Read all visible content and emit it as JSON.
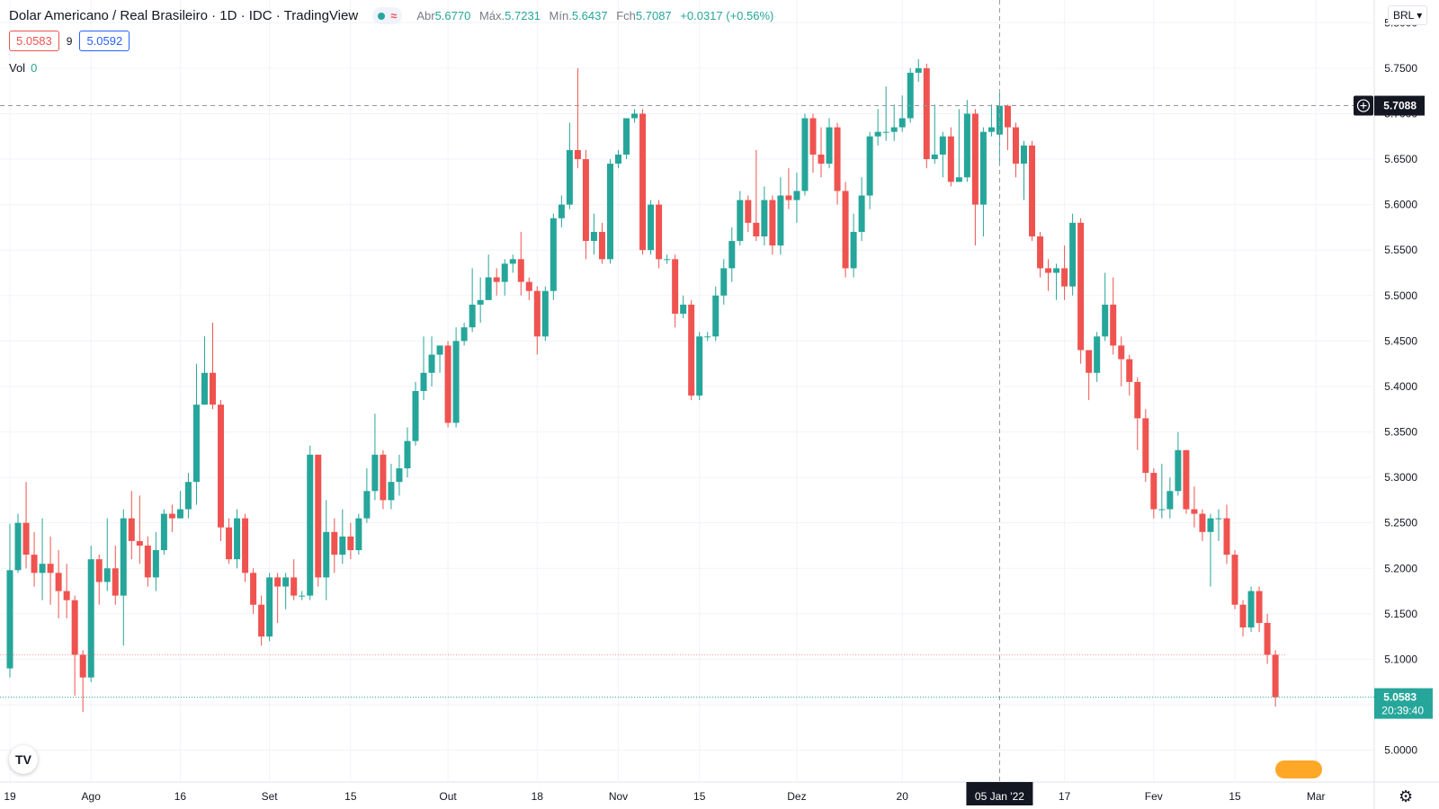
{
  "header": {
    "title": "Dolar Americano / Real Brasileiro · 1D · IDC · TradingView",
    "ohlc": [
      {
        "k": "Abr",
        "v": "5.6770"
      },
      {
        "k": "Máx.",
        "v": "5.7231"
      },
      {
        "k": "Mín.",
        "v": "5.6437"
      },
      {
        "k": "Fch",
        "v": "5.7087"
      }
    ],
    "change": "+0.0317 (+0.56%)",
    "bid": "5.0583",
    "spread": "9",
    "ask": "5.0592",
    "vol_label": "Vol",
    "vol_value": "0",
    "currency": "BRL"
  },
  "crosshair": {
    "price_label": "5.7088",
    "date_label": "05 Jan '22"
  },
  "last_price": {
    "value": "5.0583",
    "countdown": "20:39:40"
  },
  "colors": {
    "up": "#26a69a",
    "down": "#ef5350",
    "background": "#ffffff",
    "grid": "#f0f3fa",
    "crosshair": "#9598a1"
  },
  "icons": {
    "logo": "tradingview-logo-icon",
    "settings": "gear-icon",
    "flags": "flags-icon"
  },
  "chart_data": {
    "type": "candlestick",
    "symbol": "USDBRL",
    "interval": "1D",
    "ylim": [
      4.965,
      5.825
    ],
    "y_ticks": [
      "5.8000",
      "5.7500",
      "5.7000",
      "5.6500",
      "5.6000",
      "5.5500",
      "5.5000",
      "5.4500",
      "5.4000",
      "5.3500",
      "5.3000",
      "5.2500",
      "5.2000",
      "5.1500",
      "5.1000",
      "5.0500",
      "5.0000"
    ],
    "x_ticks": [
      {
        "label": "19",
        "i": 0
      },
      {
        "label": "Ago",
        "i": 10
      },
      {
        "label": "16",
        "i": 21
      },
      {
        "label": "Set",
        "i": 32
      },
      {
        "label": "15",
        "i": 42
      },
      {
        "label": "Out",
        "i": 54
      },
      {
        "label": "18",
        "i": 65
      },
      {
        "label": "Nov",
        "i": 75
      },
      {
        "label": "15",
        "i": 85
      },
      {
        "label": "Dez",
        "i": 97
      },
      {
        "label": "20",
        "i": 110
      },
      {
        "label": "17",
        "i": 130
      },
      {
        "label": "Fev",
        "i": 141
      },
      {
        "label": "15",
        "i": 151
      },
      {
        "label": "Mar",
        "i": 161
      }
    ],
    "crosshair_index": 122,
    "candles": [
      [
        5.09,
        5.198,
        5.249,
        5.08
      ],
      [
        5.198,
        5.25,
        5.26,
        5.195
      ],
      [
        5.25,
        5.215,
        5.295,
        5.2
      ],
      [
        5.215,
        5.195,
        5.24,
        5.18
      ],
      [
        5.195,
        5.205,
        5.255,
        5.165
      ],
      [
        5.205,
        5.195,
        5.235,
        5.16
      ],
      [
        5.195,
        5.175,
        5.22,
        5.145
      ],
      [
        5.175,
        5.165,
        5.205,
        5.145
      ],
      [
        5.165,
        5.105,
        5.17,
        5.06
      ],
      [
        5.105,
        5.08,
        5.11,
        5.042
      ],
      [
        5.08,
        5.21,
        5.225,
        5.075
      ],
      [
        5.21,
        5.185,
        5.215,
        5.16
      ],
      [
        5.185,
        5.2,
        5.255,
        5.175
      ],
      [
        5.2,
        5.17,
        5.225,
        5.16
      ],
      [
        5.17,
        5.255,
        5.265,
        5.115
      ],
      [
        5.255,
        5.23,
        5.285,
        5.21
      ],
      [
        5.23,
        5.225,
        5.28,
        5.205
      ],
      [
        5.225,
        5.19,
        5.235,
        5.18
      ],
      [
        5.19,
        5.22,
        5.24,
        5.175
      ],
      [
        5.22,
        5.26,
        5.265,
        5.215
      ],
      [
        5.26,
        5.255,
        5.27,
        5.24
      ],
      [
        5.255,
        5.265,
        5.285,
        5.255
      ],
      [
        5.265,
        5.295,
        5.305,
        5.255
      ],
      [
        5.295,
        5.38,
        5.425,
        5.27
      ],
      [
        5.38,
        5.415,
        5.455,
        5.38
      ],
      [
        5.415,
        5.38,
        5.47,
        5.375
      ],
      [
        5.38,
        5.245,
        5.385,
        5.23
      ],
      [
        5.245,
        5.21,
        5.255,
        5.205
      ],
      [
        5.21,
        5.255,
        5.265,
        5.2
      ],
      [
        5.255,
        5.195,
        5.26,
        5.185
      ],
      [
        5.195,
        5.16,
        5.2,
        5.15
      ],
      [
        5.16,
        5.125,
        5.17,
        5.115
      ],
      [
        5.125,
        5.19,
        5.195,
        5.12
      ],
      [
        5.19,
        5.18,
        5.195,
        5.14
      ],
      [
        5.18,
        5.19,
        5.195,
        5.155
      ],
      [
        5.19,
        5.17,
        5.21,
        5.165
      ],
      [
        5.17,
        5.17,
        5.175,
        5.165
      ],
      [
        5.17,
        5.325,
        5.335,
        5.165
      ],
      [
        5.325,
        5.19,
        5.32,
        5.18
      ],
      [
        5.19,
        5.24,
        5.275,
        5.165
      ],
      [
        5.24,
        5.215,
        5.255,
        5.195
      ],
      [
        5.215,
        5.235,
        5.265,
        5.205
      ],
      [
        5.235,
        5.22,
        5.25,
        5.21
      ],
      [
        5.22,
        5.255,
        5.26,
        5.215
      ],
      [
        5.255,
        5.285,
        5.31,
        5.25
      ],
      [
        5.285,
        5.325,
        5.37,
        5.275
      ],
      [
        5.325,
        5.275,
        5.33,
        5.265
      ],
      [
        5.275,
        5.295,
        5.315,
        5.265
      ],
      [
        5.295,
        5.31,
        5.325,
        5.28
      ],
      [
        5.31,
        5.34,
        5.355,
        5.3
      ],
      [
        5.34,
        5.395,
        5.405,
        5.335
      ],
      [
        5.395,
        5.415,
        5.455,
        5.385
      ],
      [
        5.415,
        5.435,
        5.455,
        5.4
      ],
      [
        5.435,
        5.445,
        5.445,
        5.415
      ],
      [
        5.445,
        5.36,
        5.45,
        5.355
      ],
      [
        5.36,
        5.45,
        5.465,
        5.355
      ],
      [
        5.45,
        5.465,
        5.47,
        5.445
      ],
      [
        5.465,
        5.49,
        5.53,
        5.46
      ],
      [
        5.49,
        5.495,
        5.52,
        5.47
      ],
      [
        5.495,
        5.52,
        5.545,
        5.505
      ],
      [
        5.52,
        5.515,
        5.53,
        5.5
      ],
      [
        5.515,
        5.535,
        5.54,
        5.5
      ],
      [
        5.535,
        5.54,
        5.545,
        5.525
      ],
      [
        5.54,
        5.515,
        5.57,
        5.5
      ],
      [
        5.515,
        5.505,
        5.52,
        5.495
      ],
      [
        5.505,
        5.455,
        5.51,
        5.435
      ],
      [
        5.455,
        5.505,
        5.51,
        5.45
      ],
      [
        5.505,
        5.585,
        5.59,
        5.495
      ],
      [
        5.585,
        5.6,
        5.61,
        5.575
      ],
      [
        5.6,
        5.66,
        5.69,
        5.595
      ],
      [
        5.66,
        5.65,
        5.75,
        5.64
      ],
      [
        5.65,
        5.56,
        5.66,
        5.54
      ],
      [
        5.56,
        5.57,
        5.59,
        5.545
      ],
      [
        5.57,
        5.54,
        5.58,
        5.535
      ],
      [
        5.54,
        5.645,
        5.65,
        5.535
      ],
      [
        5.645,
        5.655,
        5.66,
        5.64
      ],
      [
        5.655,
        5.695,
        5.695,
        5.65
      ],
      [
        5.695,
        5.7,
        5.705,
        5.69
      ],
      [
        5.7,
        5.55,
        5.705,
        5.545
      ],
      [
        5.55,
        5.6,
        5.605,
        5.545
      ],
      [
        5.6,
        5.54,
        5.605,
        5.53
      ],
      [
        5.54,
        5.54,
        5.545,
        5.535
      ],
      [
        5.54,
        5.48,
        5.545,
        5.465
      ],
      [
        5.48,
        5.49,
        5.5,
        5.475
      ],
      [
        5.49,
        5.39,
        5.495,
        5.385
      ],
      [
        5.39,
        5.455,
        5.46,
        5.385
      ],
      [
        5.455,
        5.455,
        5.46,
        5.45
      ],
      [
        5.455,
        5.5,
        5.51,
        5.45
      ],
      [
        5.5,
        5.53,
        5.54,
        5.49
      ],
      [
        5.53,
        5.56,
        5.575,
        5.515
      ],
      [
        5.56,
        5.605,
        5.615,
        5.555
      ],
      [
        5.605,
        5.58,
        5.61,
        5.57
      ],
      [
        5.58,
        5.565,
        5.66,
        5.56
      ],
      [
        5.565,
        5.605,
        5.62,
        5.555
      ],
      [
        5.605,
        5.555,
        5.61,
        5.545
      ],
      [
        5.555,
        5.61,
        5.63,
        5.545
      ],
      [
        5.61,
        5.605,
        5.64,
        5.595
      ],
      [
        5.605,
        5.615,
        5.635,
        5.58
      ],
      [
        5.615,
        5.695,
        5.7,
        5.61
      ],
      [
        5.695,
        5.655,
        5.7,
        5.635
      ],
      [
        5.655,
        5.645,
        5.685,
        5.63
      ],
      [
        5.645,
        5.685,
        5.695,
        5.64
      ],
      [
        5.685,
        5.615,
        5.69,
        5.6
      ],
      [
        5.615,
        5.53,
        5.625,
        5.52
      ],
      [
        5.53,
        5.57,
        5.59,
        5.52
      ],
      [
        5.57,
        5.61,
        5.63,
        5.56
      ],
      [
        5.61,
        5.675,
        5.68,
        5.595
      ],
      [
        5.675,
        5.68,
        5.705,
        5.665
      ],
      [
        5.68,
        5.68,
        5.73,
        5.67
      ],
      [
        5.68,
        5.685,
        5.71,
        5.67
      ],
      [
        5.685,
        5.695,
        5.72,
        5.68
      ],
      [
        5.695,
        5.745,
        5.75,
        5.69
      ],
      [
        5.745,
        5.75,
        5.76,
        5.735
      ],
      [
        5.75,
        5.65,
        5.755,
        5.64
      ],
      [
        5.65,
        5.655,
        5.71,
        5.645
      ],
      [
        5.655,
        5.675,
        5.68,
        5.63
      ],
      [
        5.675,
        5.625,
        5.685,
        5.62
      ],
      [
        5.625,
        5.63,
        5.705,
        5.625
      ],
      [
        5.63,
        5.7,
        5.715,
        5.625
      ],
      [
        5.7,
        5.6,
        5.705,
        5.555
      ],
      [
        5.6,
        5.68,
        5.685,
        5.565
      ],
      [
        5.68,
        5.685,
        5.71,
        5.675
      ],
      [
        5.677,
        5.7087,
        5.7231,
        5.6437
      ],
      [
        5.7087,
        5.685,
        5.71,
        5.66
      ],
      [
        5.685,
        5.645,
        5.69,
        5.63
      ],
      [
        5.645,
        5.665,
        5.67,
        5.605
      ],
      [
        5.665,
        5.565,
        5.67,
        5.56
      ],
      [
        5.565,
        5.53,
        5.57,
        5.52
      ],
      [
        5.53,
        5.525,
        5.54,
        5.505
      ],
      [
        5.525,
        5.53,
        5.535,
        5.495
      ],
      [
        5.53,
        5.51,
        5.555,
        5.495
      ],
      [
        5.51,
        5.58,
        5.59,
        5.5
      ],
      [
        5.58,
        5.44,
        5.585,
        5.425
      ],
      [
        5.44,
        5.415,
        5.44,
        5.385
      ],
      [
        5.415,
        5.455,
        5.46,
        5.405
      ],
      [
        5.455,
        5.49,
        5.525,
        5.45
      ],
      [
        5.49,
        5.445,
        5.52,
        5.435
      ],
      [
        5.445,
        5.43,
        5.455,
        5.4
      ],
      [
        5.43,
        5.405,
        5.435,
        5.39
      ],
      [
        5.405,
        5.365,
        5.41,
        5.33
      ],
      [
        5.365,
        5.305,
        5.375,
        5.295
      ],
      [
        5.305,
        5.265,
        5.31,
        5.255
      ],
      [
        5.265,
        5.265,
        5.315,
        5.255
      ],
      [
        5.265,
        5.285,
        5.3,
        5.255
      ],
      [
        5.285,
        5.33,
        5.35,
        5.28
      ],
      [
        5.33,
        5.265,
        5.33,
        5.26
      ],
      [
        5.265,
        5.26,
        5.29,
        5.245
      ],
      [
        5.26,
        5.24,
        5.265,
        5.23
      ],
      [
        5.24,
        5.255,
        5.26,
        5.18
      ],
      [
        5.255,
        5.255,
        5.265,
        5.23
      ],
      [
        5.255,
        5.215,
        5.27,
        5.205
      ],
      [
        5.215,
        5.16,
        5.22,
        5.155
      ],
      [
        5.16,
        5.135,
        5.165,
        5.125
      ],
      [
        5.135,
        5.175,
        5.18,
        5.13
      ],
      [
        5.175,
        5.14,
        5.18,
        5.13
      ],
      [
        5.14,
        5.105,
        5.15,
        5.095
      ],
      [
        5.105,
        5.0583,
        5.11,
        5.048
      ]
    ]
  }
}
